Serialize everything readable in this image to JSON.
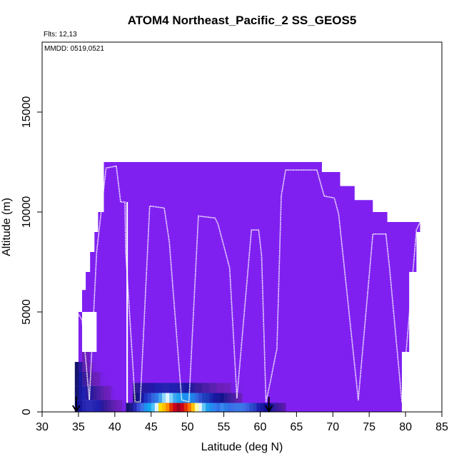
{
  "chart_data": {
    "type": "heatmap",
    "title": "ATOM4 Northeast_Pacific_2 SS_GEOS5",
    "annotations": {
      "flights": "Flts: 12,13",
      "dates": "MMDD: 0519,0521"
    },
    "xlabel": "Latitude (deg N)",
    "ylabel": "Altitude (m)",
    "xlim": [
      30,
      85
    ],
    "ylim": [
      0,
      18500
    ],
    "xticks": [
      30,
      35,
      40,
      45,
      50,
      55,
      60,
      65,
      70,
      75,
      80,
      85
    ],
    "yticks": [
      0,
      5000,
      10000,
      15000
    ],
    "grid": false,
    "background_color": "#8020F0",
    "curtain_profile": [
      [
        35.0,
        0
      ],
      [
        35.0,
        5000
      ],
      [
        35.5,
        5000
      ],
      [
        35.5,
        6100
      ],
      [
        36.0,
        6100
      ],
      [
        36.0,
        7000
      ],
      [
        36.6,
        7000
      ],
      [
        36.6,
        8000
      ],
      [
        37.2,
        8000
      ],
      [
        37.2,
        9000
      ],
      [
        37.7,
        9000
      ],
      [
        37.7,
        10000
      ],
      [
        38.5,
        10000
      ],
      [
        38.5,
        12500
      ],
      [
        68.5,
        12500
      ],
      [
        68.5,
        12000
      ],
      [
        71.0,
        12000
      ],
      [
        71.0,
        11300
      ],
      [
        73.0,
        11300
      ],
      [
        73.0,
        10600
      ],
      [
        75.5,
        10600
      ],
      [
        75.5,
        10000
      ],
      [
        77.5,
        10000
      ],
      [
        77.5,
        9500
      ],
      [
        82.0,
        9500
      ],
      [
        82.0,
        9000
      ],
      [
        81.5,
        9000
      ],
      [
        81.5,
        7000
      ],
      [
        80.5,
        7000
      ],
      [
        80.5,
        3000
      ],
      [
        79.5,
        3000
      ],
      [
        79.5,
        0
      ]
    ],
    "white_gaps": [
      {
        "x": [
          35.5,
          37.5
        ],
        "y": [
          600,
          5000
        ]
      },
      {
        "x": [
          41.6,
          41.8
        ],
        "y": [
          0,
          10500
        ]
      }
    ],
    "series": [
      {
        "values": [
          [
            34.8,
            5000
          ],
          [
            35.5,
            4600
          ],
          [
            36.5,
            600
          ],
          [
            37.5,
            8000
          ],
          [
            38.8,
            12200
          ],
          [
            40.2,
            12300
          ],
          [
            40.8,
            10500
          ],
          [
            41.4,
            10500
          ],
          [
            41.5,
            8000
          ],
          [
            42.8,
            500
          ],
          [
            43.5,
            500
          ],
          [
            44.8,
            10300
          ],
          [
            46.8,
            10200
          ],
          [
            47.5,
            8500
          ],
          [
            49.2,
            600
          ],
          [
            50.2,
            500
          ],
          [
            51.5,
            9800
          ],
          [
            53.8,
            9700
          ],
          [
            54.2,
            9400
          ],
          [
            55.8,
            7200
          ],
          [
            56.8,
            700
          ],
          [
            58.8,
            9100
          ],
          [
            59.8,
            9100
          ],
          [
            60.2,
            7800
          ],
          [
            60.8,
            500
          ],
          [
            61.4,
            1500
          ],
          [
            62.2,
            3000
          ],
          [
            62.3,
            3100
          ],
          [
            62.9,
            10800
          ],
          [
            63.5,
            12100
          ],
          [
            67.8,
            12100
          ],
          [
            68.8,
            10800
          ],
          [
            70.2,
            10700
          ],
          [
            70.8,
            9900
          ],
          [
            73.5,
            600
          ],
          [
            75.5,
            8900
          ],
          [
            77.3,
            8900
          ],
          [
            77.8,
            7200
          ],
          [
            79.5,
            500
          ],
          [
            81.5,
            9100
          ],
          [
            82.0,
            9500
          ]
        ]
      }
    ],
    "heat_rows": [
      {
        "y": [
          0,
          450
        ],
        "x_start": 41.5,
        "x_step": 0.5,
        "colors": [
          "#15156b",
          "#1a1a8a",
          "#2828b8",
          "#3a50d8",
          "#3c70e8",
          "#1e90f0",
          "#10a8f0",
          "#4fc3f7",
          "#dff3ff",
          "#ffe000",
          "#ffc000",
          "#ff8c00",
          "#e53000",
          "#c8001c",
          "#a00020",
          "#c8001c",
          "#e53000",
          "#ff7000",
          "#ffc000",
          "#ffffa0",
          "#e0f4ff",
          "#60c8f8",
          "#20a0f0",
          "#1e90f0",
          "#3080f0",
          "#3070e8",
          "#3888f0",
          "#2c7be5",
          "#3070e8",
          "#3c70e8",
          "#3a78e8",
          "#3a78e8",
          "#3c70e8",
          "#3a60e0",
          "#2c4fd0",
          "#2840c0",
          "#2020b0",
          "#1a1aa0",
          "#1010a0",
          "#0c0c90",
          "#2a1a9e",
          "#3a1a9e",
          "#4a1aa6",
          "#5a1aae"
        ]
      },
      {
        "y": [
          450,
          950
        ],
        "x_start": 42.5,
        "x_step": 0.5,
        "colors": [
          "#15156b",
          "#14148a",
          "#1818a0",
          "#2030c0",
          "#2848d0",
          "#3068e0",
          "#3078e8",
          "#40a0f0",
          "#90d8fa",
          "#e0f4ff",
          "#80d0fa",
          "#40a8f0",
          "#20a0f0",
          "#1898f0",
          "#1e90f0",
          "#1e90f0",
          "#2080e8",
          "#3068e0",
          "#2c50d0",
          "#2040c0",
          "#1e3ab8",
          "#1a28b0",
          "#1818a0",
          "#18189a",
          "#14148a",
          "#2a1a96",
          "#3a1c9c",
          "#4a1ea6",
          "#5a20ae",
          "#6a20b8"
        ]
      },
      {
        "y": [
          950,
          1450
        ],
        "x_start": 42.5,
        "x_step": 0.5,
        "colors": [
          "#2a1a8a",
          "#2a1a96",
          "#2818a0",
          "#2818a0",
          "#2418a8",
          "#2418a8",
          "#2020b0",
          "#2020b0",
          "#2424b0",
          "#2424b0",
          "#2020b0",
          "#2020b0",
          "#2020a8",
          "#2020a8",
          "#1818a0",
          "#1818a0",
          "#2a1a9e",
          "#3a1c9c",
          "#3a1c9c",
          "#4a1ea6",
          "#4a1ea6",
          "#5a20ae",
          "#5a20ae",
          "#6a20b8",
          "#6a20b8",
          "#7020c0",
          "#7020c0",
          "#7820e8",
          "#7820e8",
          "#7c20ec"
        ]
      },
      {
        "y": [
          0,
          600
        ],
        "x_start": 34.5,
        "x_step": 0.5,
        "colors": [
          "#1010a0",
          "#1818a0",
          "#2424b0",
          "#2a2ab8",
          "#2a2ab8",
          "#2424b0",
          "#2020b0",
          "#2a1a9e",
          "#3a1c9c",
          "#4a1ea6",
          "#5a20ae",
          "#6a20b8",
          "#7020c0",
          "#7820e8"
        ]
      },
      {
        "y": [
          600,
          1300
        ],
        "x_start": 34.5,
        "x_step": 0.5,
        "colors": [
          "#15156b",
          "#1818a0",
          "#2020b0",
          "#2a1a9e",
          "#2818a0",
          "#3a1c9c",
          "#4a1ea6",
          "#5a20ae",
          "#6a20b8",
          "#7020c0",
          "#7820e8"
        ]
      },
      {
        "y": [
          1300,
          2000
        ],
        "x_start": 34.5,
        "x_step": 0.5,
        "colors": [
          "#15156b",
          "#1818a0",
          "#3a1c9c",
          "#4a1ea6",
          "#5a20ae",
          "#6a20b8",
          "#7020c0",
          "#7820e8",
          "#7c20ec"
        ]
      },
      {
        "y": [
          2000,
          2500
        ],
        "x_start": 34.5,
        "x_step": 0.5,
        "colors": [
          "#15156b",
          "#2a1a9e",
          "#5a20ae",
          "#6a20b8",
          "#7020c0",
          "#7820e8",
          "#7c20ec"
        ]
      },
      {
        "y": [
          2500,
          3000
        ],
        "x_start": 35.5,
        "x_step": 0.5,
        "colors": [
          "#6a20b8",
          "#7020c0",
          "#7820e8",
          "#7c20ec"
        ]
      }
    ],
    "markers": [
      {
        "type": "arrow-down",
        "x": 34.7
      },
      {
        "type": "arrow-down",
        "x": 61.2
      }
    ]
  }
}
